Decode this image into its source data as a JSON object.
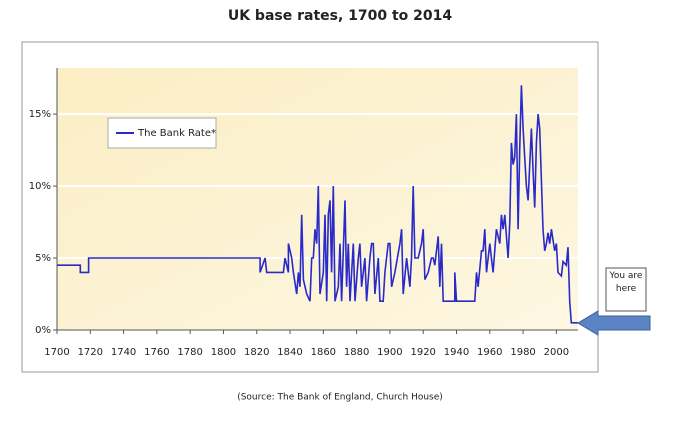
{
  "chart_data": {
    "type": "line",
    "title": "UK base rates, 1700 to 2014",
    "source": "(Source: The Bank of England, Church House)",
    "annotation": "You are here",
    "legend": "upper-left",
    "grid": true,
    "xlim": [
      1700,
      2013
    ],
    "xticks": [
      1700,
      1720,
      1740,
      1760,
      1780,
      1800,
      1820,
      1840,
      1860,
      1880,
      1900,
      1920,
      1940,
      1960,
      1980,
      2000
    ],
    "ylim": [
      0,
      18.2
    ],
    "yticks": [
      {
        "value": 0,
        "label": "0%"
      },
      {
        "value": 5,
        "label": "5%"
      },
      {
        "value": 10,
        "label": "10%"
      },
      {
        "value": 15,
        "label": "15%"
      }
    ],
    "x": [
      1700,
      1714,
      1714,
      1719,
      1719,
      1822,
      1822,
      1825,
      1826,
      1836,
      1837,
      1839,
      1839,
      1841,
      1842,
      1844,
      1845,
      1846,
      1847,
      1848,
      1850,
      1852,
      1853,
      1854,
      1855,
      1856,
      1857,
      1858,
      1860,
      1861,
      1862,
      1863,
      1864,
      1865,
      1866,
      1867,
      1869,
      1870,
      1871,
      1873,
      1874,
      1875,
      1876,
      1878,
      1879,
      1881,
      1882,
      1883,
      1885,
      1886,
      1888,
      1889,
      1890,
      1891,
      1893,
      1894,
      1896,
      1897,
      1899,
      1900,
      1901,
      1903,
      1906,
      1907,
      1908,
      1910,
      1912,
      1913,
      1914,
      1915,
      1917,
      1919,
      1920,
      1921,
      1923,
      1925,
      1926,
      1927,
      1929,
      1930,
      1931,
      1932,
      1939,
      1939,
      1940,
      1951,
      1952,
      1953,
      1955,
      1956,
      1957,
      1958,
      1960,
      1961,
      1962,
      1964,
      1966,
      1967,
      1968,
      1969,
      1971,
      1972,
      1973,
      1974,
      1975,
      1976,
      1977,
      1978,
      1979,
      1980,
      1981,
      1982,
      1983,
      1985,
      1986,
      1987,
      1988,
      1989,
      1990,
      1992,
      1993,
      1994,
      1995,
      1996,
      1997,
      1998,
      1999,
      2000,
      2001,
      2003,
      2004,
      2006,
      2007,
      2008,
      2009,
      2013
    ],
    "series": [
      {
        "name": "The Bank Rate*",
        "color": "#2a2ac8",
        "values": [
          4.5,
          4.5,
          4,
          4,
          5,
          5,
          4,
          5,
          4,
          4,
          5,
          4,
          6,
          5,
          4,
          2.5,
          4,
          3,
          8,
          3.5,
          2.5,
          2,
          5,
          5,
          7,
          6,
          10,
          2.5,
          4,
          8,
          2,
          8,
          9,
          4,
          10,
          2,
          3,
          6,
          2,
          9,
          3,
          6,
          2,
          6,
          2,
          5,
          6,
          3,
          5,
          2,
          5,
          6,
          6,
          2.5,
          5,
          2,
          2,
          4,
          6,
          6,
          3,
          4,
          6,
          7,
          2.5,
          5,
          3,
          5,
          10,
          5,
          5,
          6,
          7,
          3.5,
          4,
          5,
          5,
          4.5,
          6.5,
          3,
          6,
          2,
          2,
          4,
          2,
          2,
          4,
          3,
          5.5,
          5.5,
          7,
          4,
          6,
          5,
          4,
          7,
          6,
          8,
          7,
          8,
          5,
          7.5,
          13,
          11.5,
          12,
          15,
          7,
          12.5,
          17,
          14,
          12,
          10,
          9,
          14,
          11,
          8.5,
          13,
          15,
          14,
          7,
          5.5,
          6,
          6.75,
          6,
          7,
          6.25,
          5.5,
          6,
          4,
          3.75,
          4.75,
          4.5,
          5.75,
          2,
          0.5,
          0.5
        ]
      }
    ]
  }
}
